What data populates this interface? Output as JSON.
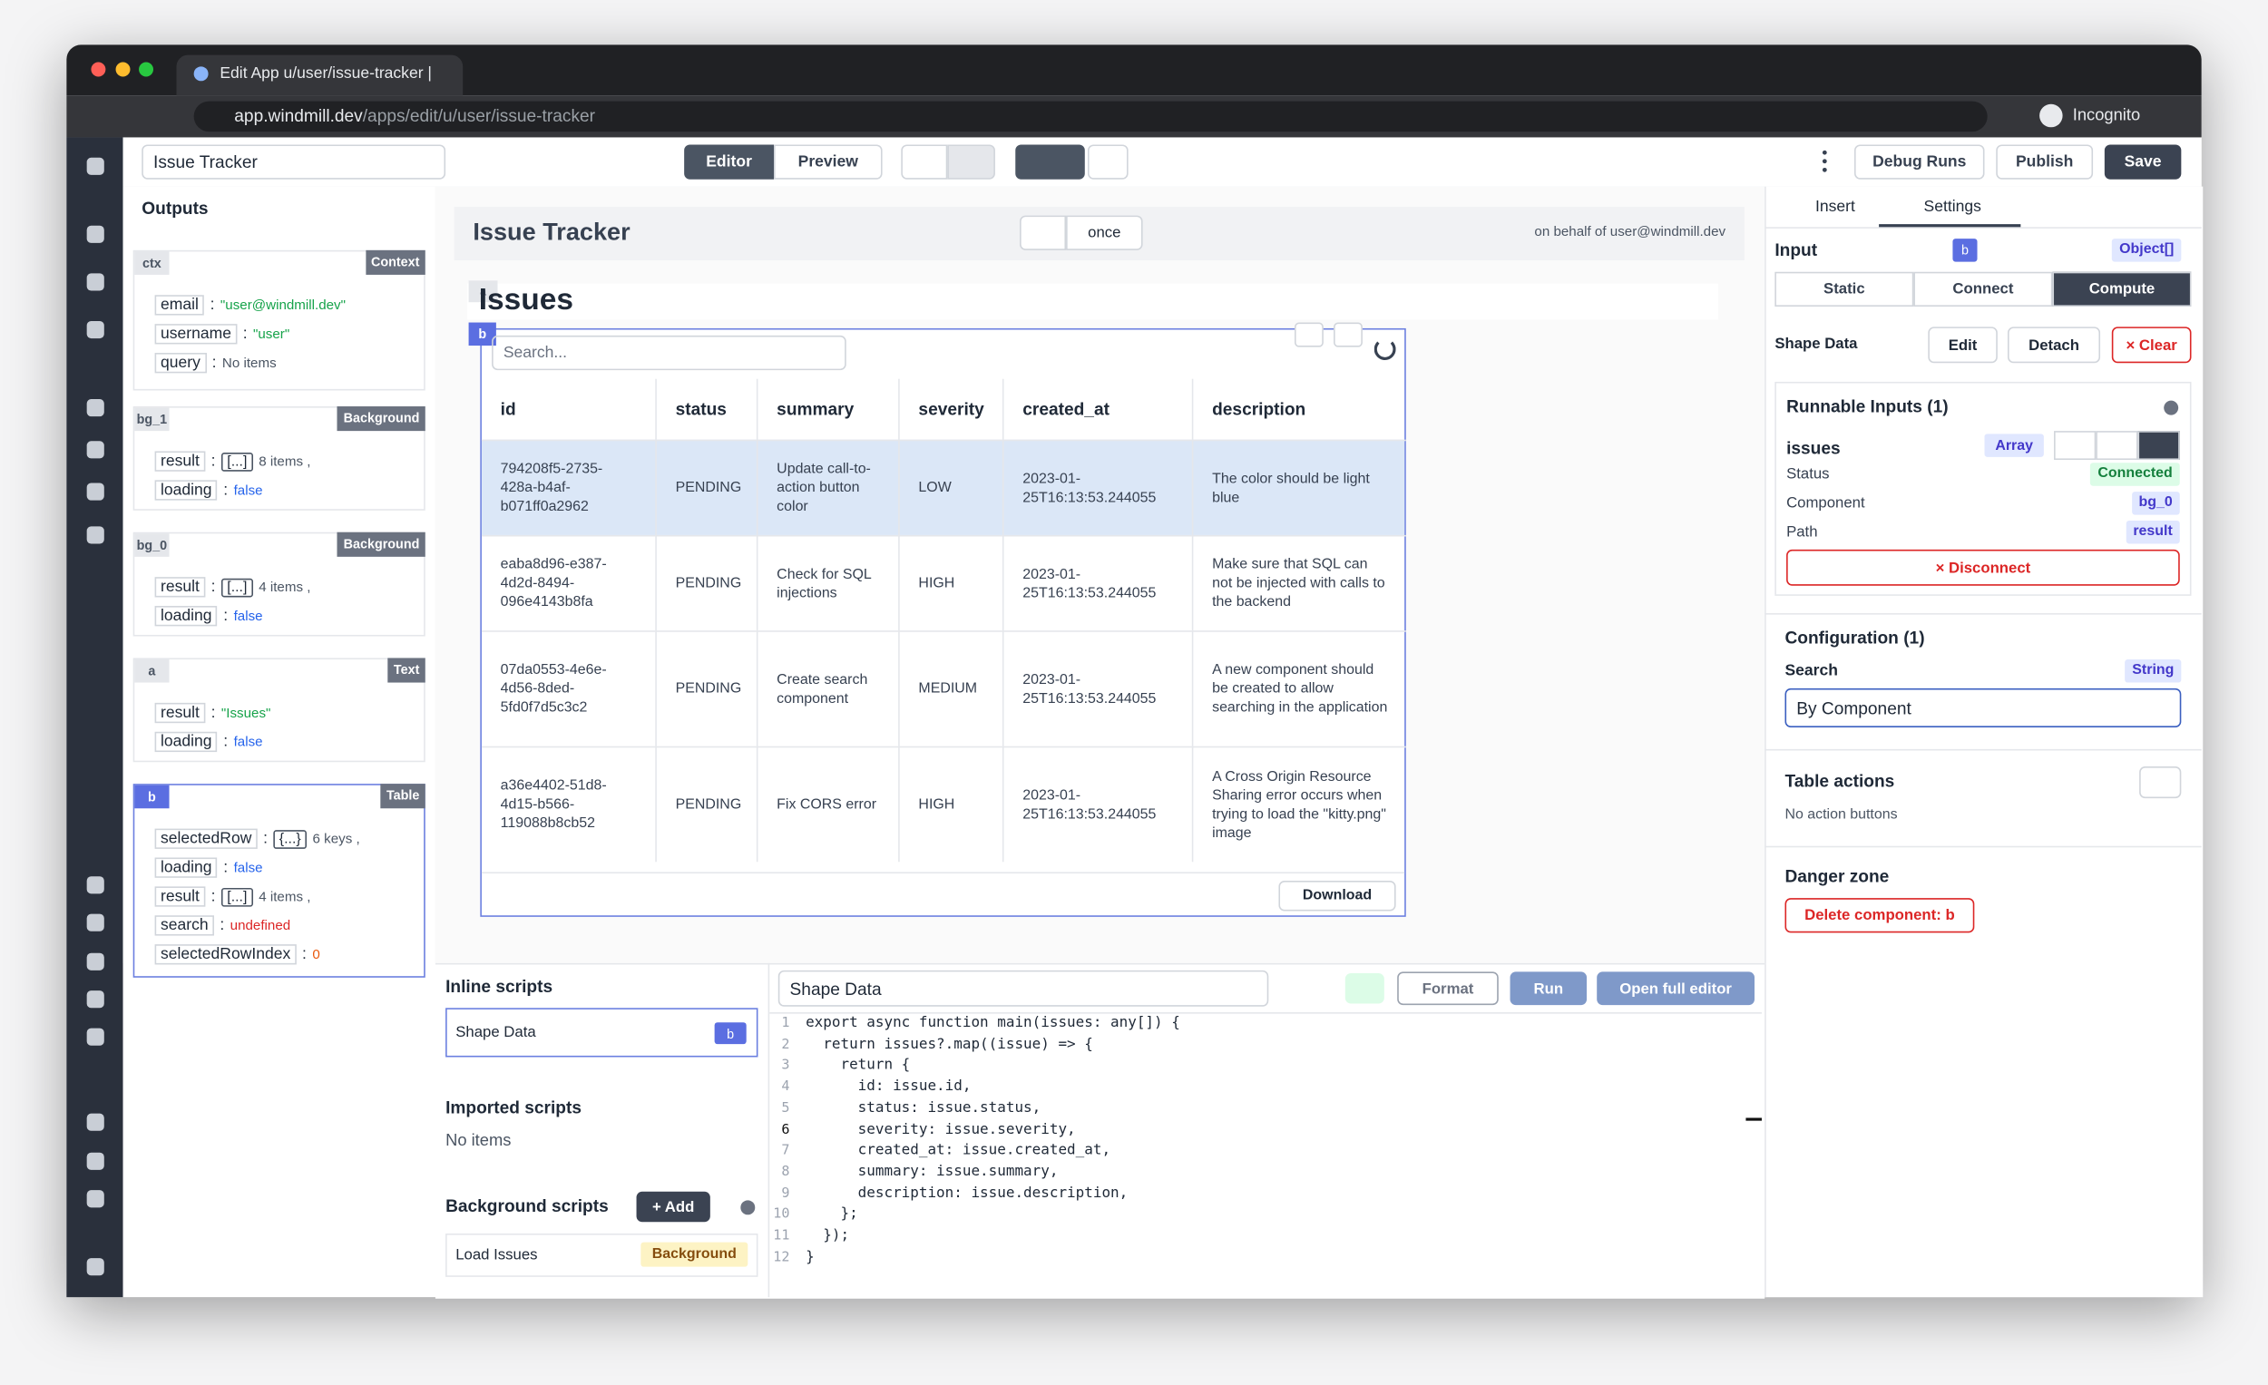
{
  "browser": {
    "tab_title": "Edit App u/user/issue-tracker |",
    "url_host": "app.windmill.dev",
    "url_path": "/apps/edit/u/user/issue-tracker",
    "profile": "Incognito"
  },
  "toolbar": {
    "app_name": "Issue Tracker",
    "editor": "Editor",
    "preview": "Preview",
    "debug_runs": "Debug Runs",
    "publish": "Publish",
    "save": "Save"
  },
  "outputs": {
    "title": "Outputs",
    "separator": ":",
    "groups": [
      {
        "id": "ctx",
        "kind": "Context",
        "fields": [
          {
            "key": "email",
            "value": "\"user@windmill.dev\""
          },
          {
            "key": "username",
            "value": "\"user\""
          },
          {
            "key": "query",
            "value": "No items"
          }
        ]
      },
      {
        "id": "bg_1",
        "kind": "Background",
        "fields": [
          {
            "key": "result",
            "badge": "[...]",
            "value": "8 items ,"
          },
          {
            "key": "loading",
            "value": "false"
          }
        ]
      },
      {
        "id": "bg_0",
        "kind": "Background",
        "fields": [
          {
            "key": "result",
            "badge": "[...]",
            "value": "4 items ,"
          },
          {
            "key": "loading",
            "value": "false"
          }
        ]
      },
      {
        "id": "a",
        "kind": "Text",
        "fields": [
          {
            "key": "result",
            "value": "\"Issues\""
          },
          {
            "key": "loading",
            "value": "false"
          }
        ]
      },
      {
        "id": "b",
        "kind": "Table",
        "fields": [
          {
            "key": "selectedRow",
            "badge": "{...}",
            "value": "6 keys ,"
          },
          {
            "key": "loading",
            "value": "false"
          },
          {
            "key": "result",
            "badge": "[...]",
            "value": "4 items ,"
          },
          {
            "key": "search",
            "value": "undefined"
          },
          {
            "key": "selectedRowIndex",
            "value": "0"
          }
        ]
      }
    ]
  },
  "canvas": {
    "title": "Issue Tracker",
    "refresh": "once",
    "on_behalf": "on behalf of user@windmill.dev",
    "text_component": {
      "id": "a",
      "text": "Issues"
    },
    "table": {
      "id": "b",
      "search_placeholder": "Search...",
      "columns": [
        "id",
        "status",
        "summary",
        "severity",
        "created_at",
        "description"
      ],
      "rows": [
        [
          "794208f5-2735-428a-b4af-b071ff0a2962",
          "PENDING",
          "Update call-to-action button color",
          "LOW",
          "2023-01-25T16:13:53.244055",
          "The color should be light blue"
        ],
        [
          "eaba8d96-e387-4d2d-8494-096e4143b8fa",
          "PENDING",
          "Check for SQL injections",
          "HIGH",
          "2023-01-25T16:13:53.244055",
          "Make sure that SQL can not be injected with calls to the backend"
        ],
        [
          "07da0553-4e6e-4d56-8ded-5fd0f7d5c3c2",
          "PENDING",
          "Create search component",
          "MEDIUM",
          "2023-01-25T16:13:53.244055",
          "A new component should be created to allow searching in the application"
        ],
        [
          "a36e4402-51d8-4d15-b566-119088b8cb52",
          "PENDING",
          "Fix CORS error",
          "HIGH",
          "2023-01-25T16:13:53.244055",
          "A Cross Origin Resource Sharing error occurs when trying to load the \"kitty.png\" image"
        ]
      ],
      "download": "Download"
    }
  },
  "scripts": {
    "inline_title": "Inline scripts",
    "inline": [
      {
        "name": "Shape Data",
        "component": "b"
      }
    ],
    "imported_title": "Imported scripts",
    "imported_empty": "No items",
    "background_title": "Background scripts",
    "add": "+ Add",
    "background": [
      {
        "name": "Load Issues",
        "kind": "Background"
      }
    ]
  },
  "editor": {
    "name": "Shape Data",
    "format": "Format",
    "run": "Run",
    "open_full": "Open full editor",
    "line_numbers": [
      1,
      2,
      3,
      4,
      5,
      6,
      7,
      8,
      9,
      10,
      11,
      12
    ],
    "lines": [
      "export async function main(issues: any[]) {",
      "  return issues?.map((issue) => {",
      "    return {",
      "      id: issue.id,",
      "      status: issue.status,",
      "      severity: issue.severity,",
      "      created_at: issue.created_at,",
      "      summary: issue.summary,",
      "      description: issue.description,",
      "    };",
      "  });",
      "}"
    ]
  },
  "settings": {
    "tabs": [
      "Insert",
      "Settings"
    ],
    "input": "Input",
    "component": "b",
    "type": "Object[]",
    "modes": [
      "Static",
      "Connect",
      "Compute"
    ],
    "shape_data": "Shape Data",
    "edit": "Edit",
    "detach": "Detach",
    "clear": "× Clear",
    "runnable_title": "Runnable Inputs (1)",
    "input_name": "issues",
    "input_type": "Array",
    "status_label": "Status",
    "status": "Connected",
    "component_label": "Component",
    "component_value": "bg_0",
    "path_label": "Path",
    "path_value": "result",
    "disconnect": "× Disconnect",
    "config_title": "Configuration (1)",
    "search_label": "Search",
    "search_type": "String",
    "search_value": "By Component",
    "actions_title": "Table actions",
    "actions_empty": "No action buttons",
    "danger_title": "Danger zone",
    "delete": "Delete component: b"
  }
}
